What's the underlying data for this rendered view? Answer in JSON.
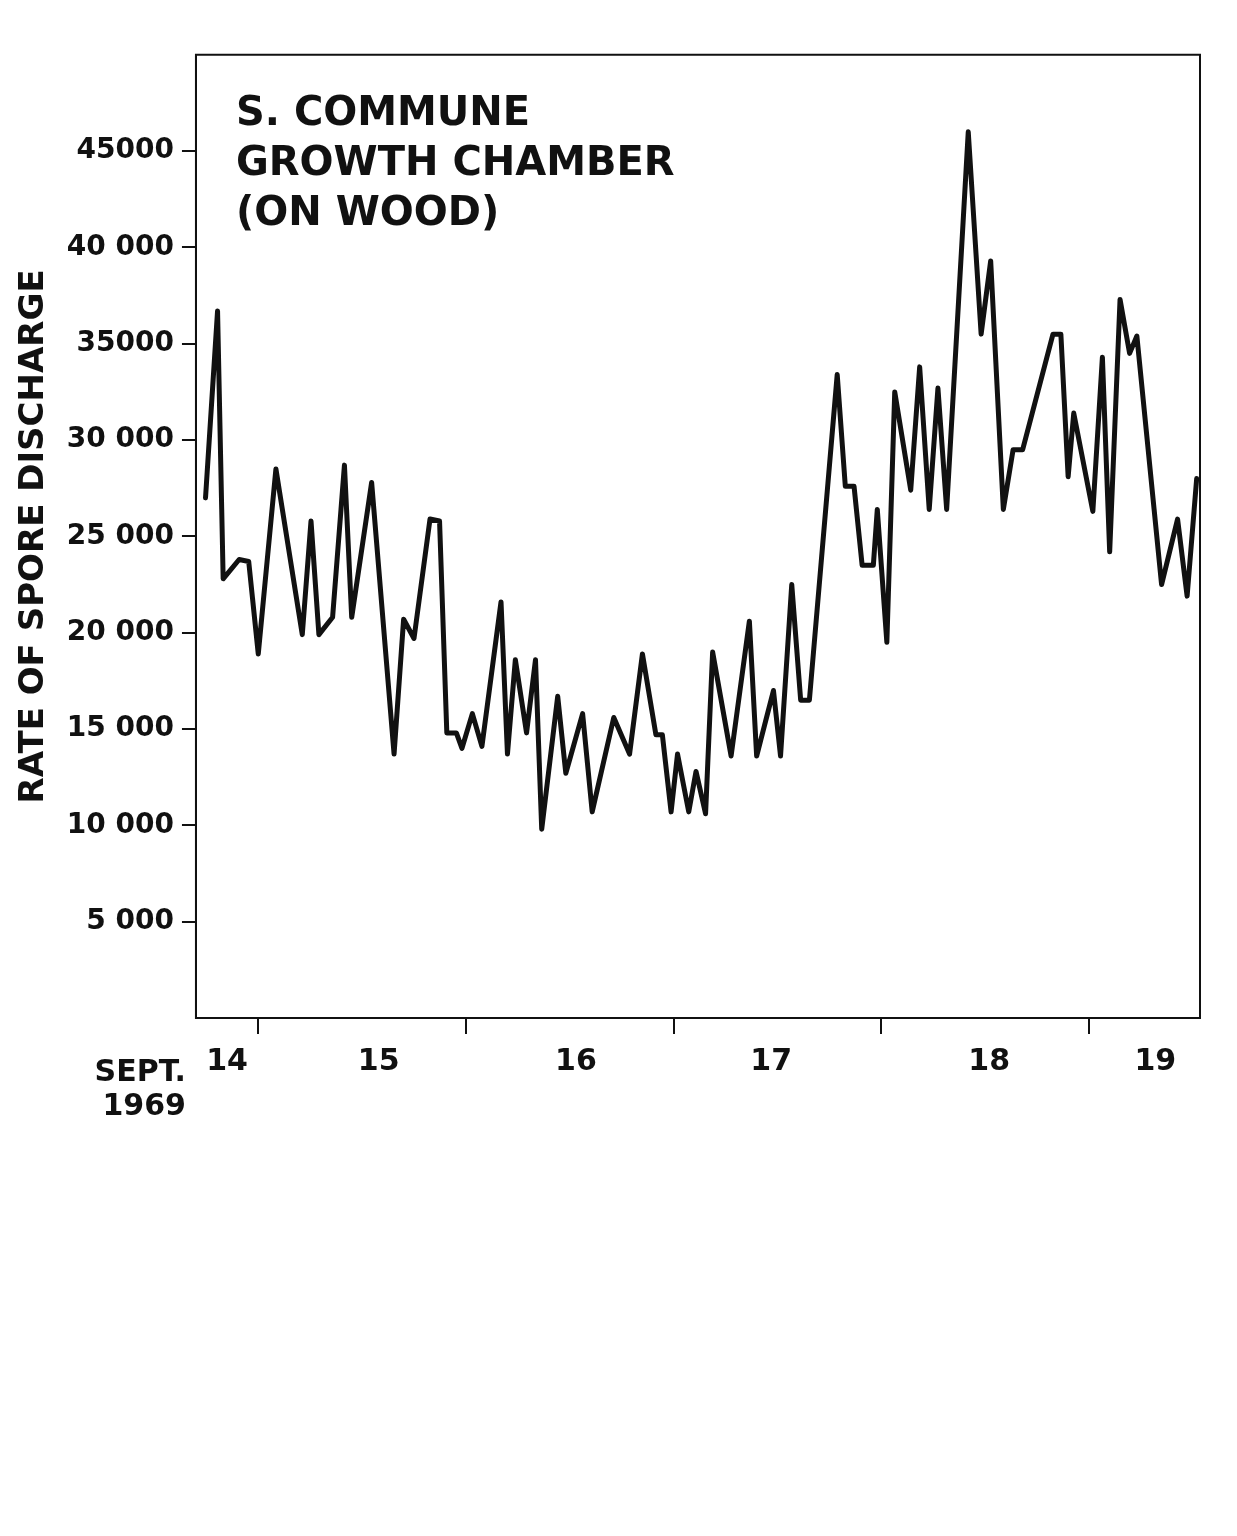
{
  "chart_data": {
    "type": "line",
    "title": "S. COMMUNE\nGROWTH CHAMBER\n(ON WOOD)",
    "ylabel": "RATE OF SPORE DISCHARGE",
    "annotations": [
      "SEPT.\n1969"
    ],
    "x": [
      14.246,
      14.304,
      14.331,
      14.408,
      14.454,
      14.5,
      14.585,
      14.712,
      14.754,
      14.792,
      14.858,
      14.915,
      14.95,
      15.046,
      15.154,
      15.2,
      15.25,
      15.327,
      15.373,
      15.408,
      15.454,
      15.481,
      15.531,
      15.577,
      15.669,
      15.7,
      15.738,
      15.792,
      15.835,
      15.865,
      15.942,
      15.981,
      16.062,
      16.108,
      16.212,
      16.288,
      16.35,
      16.415,
      16.446,
      16.488,
      16.519,
      16.573,
      16.608,
      16.654,
      16.688,
      16.777,
      16.865,
      16.9,
      16.981,
      17.015,
      17.069,
      17.112,
      17.154,
      17.288,
      17.327,
      17.369,
      17.408,
      17.462,
      17.481,
      17.527,
      17.565,
      17.642,
      17.685,
      17.731,
      17.773,
      17.815,
      17.919,
      17.981,
      18.027,
      18.088,
      18.135,
      18.181,
      18.327,
      18.365,
      18.4,
      18.427,
      18.519,
      18.565,
      18.6,
      18.65,
      18.696,
      18.731,
      18.85,
      18.927,
      18.973,
      19.019
    ],
    "series": [
      {
        "color": "#111111",
        "values": [
          27000,
          36700,
          22800,
          23800,
          23700,
          18900,
          28500,
          19900,
          25800,
          19900,
          20800,
          28700,
          20800,
          27800,
          13700,
          20700,
          19700,
          25900,
          25800,
          14800,
          14800,
          14000,
          15800,
          14100,
          21600,
          13700,
          18600,
          14800,
          18600,
          9800,
          16700,
          12700,
          15800,
          10700,
          15600,
          13700,
          18900,
          14700,
          14700,
          10700,
          13700,
          10700,
          12800,
          10600,
          19000,
          13600,
          20600,
          13600,
          17000,
          13600,
          22500,
          16500,
          16500,
          33400,
          27600,
          27600,
          23500,
          23500,
          26400,
          19500,
          32500,
          27400,
          33800,
          26400,
          32700,
          26400,
          46000,
          35500,
          39300,
          26400,
          29500,
          29500,
          35500,
          35500,
          28100,
          31400,
          26300,
          34300,
          24200,
          37300,
          34500,
          35400,
          22500,
          25900,
          21900,
          28000
        ]
      }
    ],
    "xlim": [
      14.2,
      19.035
    ],
    "xticks": [
      {
        "value": 14.35,
        "label": "14"
      },
      {
        "value": 14.5,
        "label": null
      },
      {
        "value": 15.08,
        "label": "15"
      },
      {
        "value": 15.5,
        "label": null
      },
      {
        "value": 16.03,
        "label": "16"
      },
      {
        "value": 16.5,
        "label": null
      },
      {
        "value": 16.97,
        "label": "17"
      },
      {
        "value": 17.5,
        "label": null
      },
      {
        "value": 18.02,
        "label": "18"
      },
      {
        "value": 18.5,
        "label": null
      },
      {
        "value": 18.82,
        "label": "19"
      }
    ],
    "ylim": [
      0,
      50000
    ],
    "yticks": [
      {
        "value": 5000,
        "label": "5 000"
      },
      {
        "value": 10000,
        "label": "10 000"
      },
      {
        "value": 15000,
        "label": "15 000"
      },
      {
        "value": 20000,
        "label": "20 000"
      },
      {
        "value": 25000,
        "label": "25 000"
      },
      {
        "value": 30000,
        "label": "30 000"
      },
      {
        "value": 35000,
        "label": "35000"
      },
      {
        "value": 40000,
        "label": "40 000"
      },
      {
        "value": 45000,
        "label": "45000"
      }
    ],
    "grid": false,
    "legend": false,
    "marker": "none",
    "line_style": "solid"
  }
}
